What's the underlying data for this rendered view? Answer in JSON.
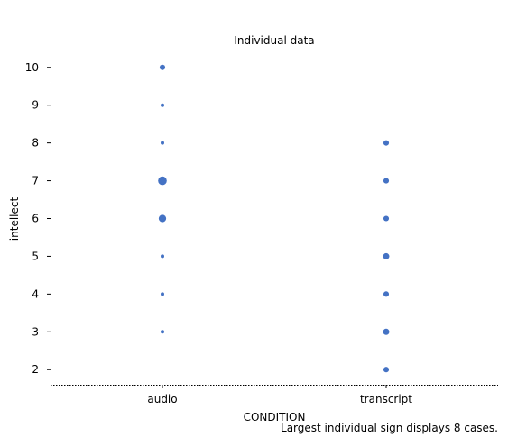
{
  "chart_data": {
    "type": "scatter",
    "title": "Individual data",
    "xlabel": "CONDITION",
    "ylabel": "intellect",
    "categories": [
      "audio",
      "transcript"
    ],
    "ylim": [
      1.6,
      10.4
    ],
    "yticks": [
      "2",
      "3",
      "4",
      "5",
      "6",
      "7",
      "8",
      "9",
      "10"
    ],
    "grid": false,
    "dot_color": "#4472c4",
    "max_count": 8,
    "points": [
      {
        "x": "audio",
        "y": 10,
        "count": 2
      },
      {
        "x": "audio",
        "y": 9,
        "count": 1
      },
      {
        "x": "audio",
        "y": 8,
        "count": 1
      },
      {
        "x": "audio",
        "y": 7,
        "count": 8
      },
      {
        "x": "audio",
        "y": 6,
        "count": 5
      },
      {
        "x": "audio",
        "y": 5,
        "count": 1
      },
      {
        "x": "audio",
        "y": 4,
        "count": 1
      },
      {
        "x": "audio",
        "y": 3,
        "count": 1
      },
      {
        "x": "transcript",
        "y": 8,
        "count": 2
      },
      {
        "x": "transcript",
        "y": 7,
        "count": 2
      },
      {
        "x": "transcript",
        "y": 6,
        "count": 2
      },
      {
        "x": "transcript",
        "y": 5,
        "count": 3
      },
      {
        "x": "transcript",
        "y": 4,
        "count": 2
      },
      {
        "x": "transcript",
        "y": 3,
        "count": 3
      },
      {
        "x": "transcript",
        "y": 2,
        "count": 2
      }
    ],
    "annotation": "Largest individual sign displays 8 cases."
  }
}
